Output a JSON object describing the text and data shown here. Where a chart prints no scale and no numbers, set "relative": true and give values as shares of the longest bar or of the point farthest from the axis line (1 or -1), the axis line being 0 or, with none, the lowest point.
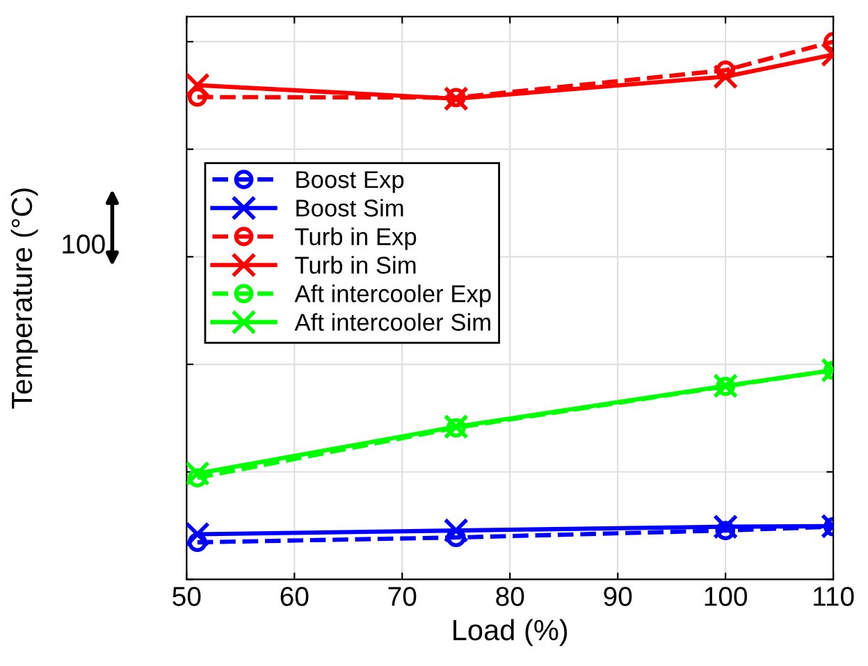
{
  "chart_data": {
    "type": "line",
    "xlabel": "Load (%)",
    "ylabel": "Temperature (°C)",
    "relative": true,
    "xlim": [
      50,
      110
    ],
    "xticks": [
      50,
      60,
      70,
      80,
      90,
      100,
      110
    ],
    "grid": true,
    "legend": "left",
    "x": [
      51,
      75,
      100,
      110
    ],
    "series": [
      {
        "name": "Boost Exp",
        "color": "#0000ff",
        "marker": "circle",
        "line_style": "dashed",
        "values": [
          0.069,
          0.078,
          0.091,
          0.098
        ]
      },
      {
        "name": "Boost Sim",
        "color": "#0000ff",
        "marker": "cross",
        "line_style": "solid",
        "values": [
          0.084,
          0.091,
          0.098,
          0.099
        ]
      },
      {
        "name": "Turb in Exp",
        "color": "#ff0000",
        "marker": "circle",
        "line_style": "dashed",
        "values": [
          0.897,
          0.896,
          0.947,
          1.0
        ]
      },
      {
        "name": "Turb in Sim",
        "color": "#ff0000",
        "marker": "cross",
        "line_style": "solid",
        "values": [
          0.919,
          0.894,
          0.935,
          0.976
        ]
      },
      {
        "name": "Aft intercooler Exp",
        "color": "#00ff00",
        "marker": "circle",
        "line_style": "dashed",
        "values": [
          0.189,
          0.282,
          0.359,
          0.389
        ]
      },
      {
        "name": "Aft intercooler Sim",
        "color": "#00ff00",
        "marker": "cross",
        "line_style": "solid",
        "values": [
          0.197,
          0.284,
          0.36,
          0.389
        ]
      }
    ],
    "annotations": [
      "100"
    ]
  }
}
